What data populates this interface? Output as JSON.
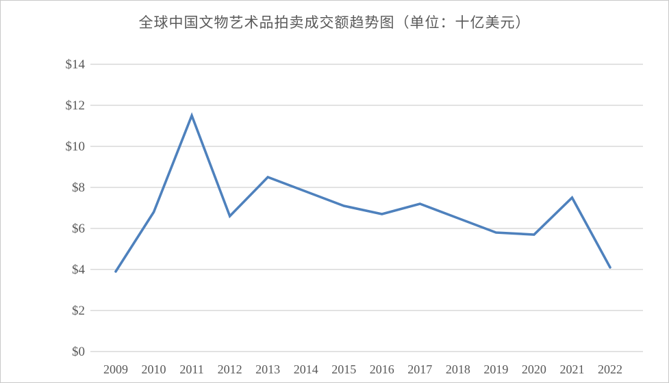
{
  "chart_data": {
    "type": "line",
    "title": "全球中国文物艺术品拍卖成交额趋势图（单位：十亿美元）",
    "categories": [
      "2009",
      "2010",
      "2011",
      "2012",
      "2013",
      "2014",
      "2015",
      "2016",
      "2017",
      "2018",
      "2019",
      "2020",
      "2021",
      "2022"
    ],
    "series": [
      {
        "name": "全球中国文物艺术品拍卖成交额（十亿美元）",
        "values": [
          3.9,
          6.8,
          11.5,
          6.6,
          8.5,
          7.8,
          7.1,
          6.7,
          7.2,
          6.5,
          5.8,
          5.7,
          7.5,
          4.1
        ]
      }
    ],
    "xlabel": "",
    "ylabel": "",
    "ylim": [
      0,
      14
    ],
    "ytick_step": 2,
    "ytick_labels": [
      "$0",
      "$2",
      "$4",
      "$6",
      "$8",
      "$10",
      "$12",
      "$14"
    ],
    "grid": "horizontal",
    "legend_position": "none",
    "colors": {
      "line": "#4E81BD",
      "gridline": "#D9D9D9",
      "text": "#595959",
      "background": "#FFFFFF"
    }
  }
}
